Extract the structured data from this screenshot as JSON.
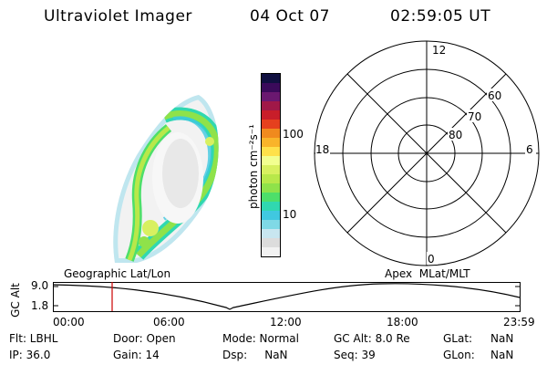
{
  "header": {
    "instrument": "Ultraviolet Imager",
    "date": "04 Oct 07",
    "time": "02:59:05 UT"
  },
  "colorbar": {
    "label": "photon cm⁻²s⁻¹",
    "ticks": [
      "100",
      "10"
    ],
    "colors": [
      "#f2f2f2",
      "#dcdcdc",
      "#c8e6f0",
      "#7fd9e6",
      "#40c8e0",
      "#30d8b0",
      "#4ddf6a",
      "#8fe24a",
      "#b8e84a",
      "#d8f060",
      "#f2ff90",
      "#ffe14a",
      "#f9b42a",
      "#f08a1e",
      "#e5401e",
      "#c81e2a",
      "#a01848",
      "#6a1870",
      "#3a0a5a",
      "#101040"
    ]
  },
  "polar_grid": {
    "mlt_labels": {
      "top": "12",
      "left": "18",
      "right": "6",
      "bottom": "0"
    },
    "lat_labels": [
      "60",
      "70",
      "80"
    ]
  },
  "altitude_panel": {
    "y_axis_label": "GC Alt",
    "y_ticks": [
      "9.0",
      "1.8"
    ],
    "left_caption": "Geographic Lat/Lon",
    "right_caption": "Apex  MLat/MLT",
    "time_ticks": [
      "00:00",
      "06:00",
      "12:00",
      "18:00",
      "23:59"
    ],
    "cursor_color": "#cc0000"
  },
  "status": {
    "filter": "Flt: LBHL",
    "ip": "IP: 36.0",
    "door": "Door: Open",
    "gain": "Gain: 14",
    "mode": "Mode: Normal",
    "dsp": "Dsp:     NaN",
    "gc_alt": "GC Alt: 8.0 Re",
    "seq": "Seq: 39",
    "glat_label": "GLat:",
    "glat_value": "NaN",
    "glon_label": "GLon:",
    "glon_value": "NaN"
  }
}
